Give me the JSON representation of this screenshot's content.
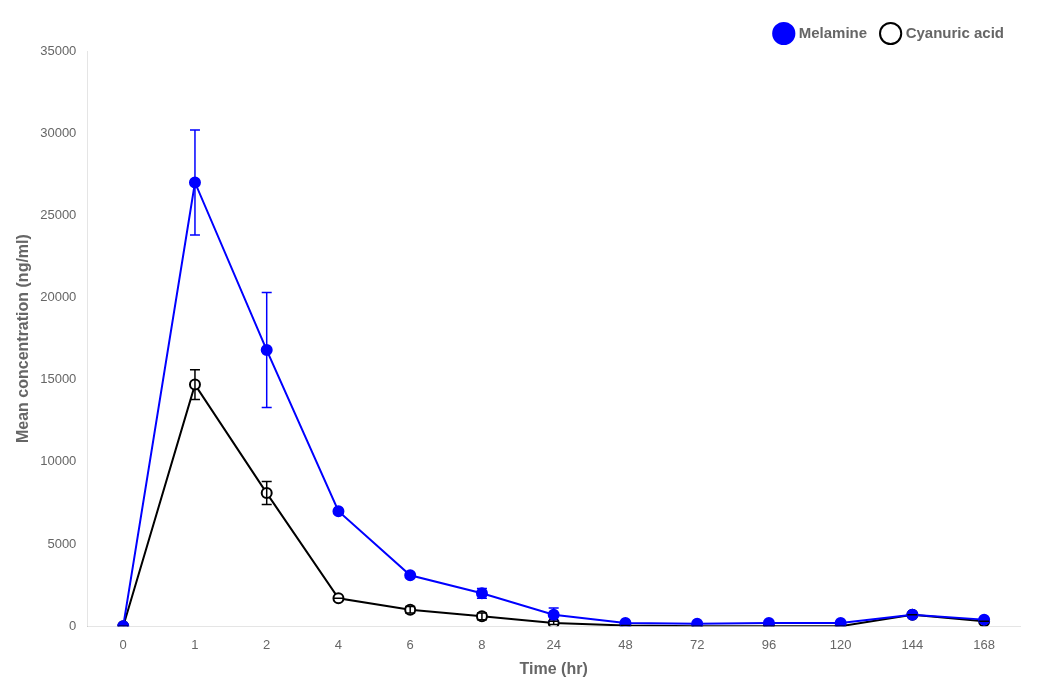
{
  "chart_data": {
    "type": "line",
    "xlabel": "Time (hr)",
    "ylabel": "Mean concentration (ng/ml)",
    "categories": [
      "0",
      "1",
      "2",
      "4",
      "6",
      "8",
      "24",
      "48",
      "72",
      "96",
      "120",
      "144",
      "168"
    ],
    "series": [
      {
        "name": "Melamine",
        "color": "#0000ff",
        "marker": "circle",
        "values": [
          0,
          27000,
          16800,
          7000,
          3100,
          2000,
          700,
          200,
          150,
          200,
          200,
          700,
          400
        ],
        "errors": [
          0,
          3200,
          3500,
          0,
          0,
          300,
          400,
          0,
          100,
          0,
          0,
          0,
          0
        ]
      },
      {
        "name": "Cyanuric acid",
        "color": "#000000",
        "marker": "open circle",
        "values": [
          0,
          14700,
          8100,
          1700,
          1000,
          600,
          200,
          50,
          0,
          0,
          0,
          700,
          300
        ],
        "errors": [
          0,
          900,
          700,
          0,
          200,
          200,
          100,
          0,
          0,
          0,
          0,
          0,
          0
        ]
      }
    ],
    "ylim": [
      0,
      35000
    ],
    "yticks": [
      0,
      5000,
      10000,
      15000,
      20000,
      25000,
      30000,
      35000
    ],
    "grid": false,
    "legend": "upper right"
  }
}
